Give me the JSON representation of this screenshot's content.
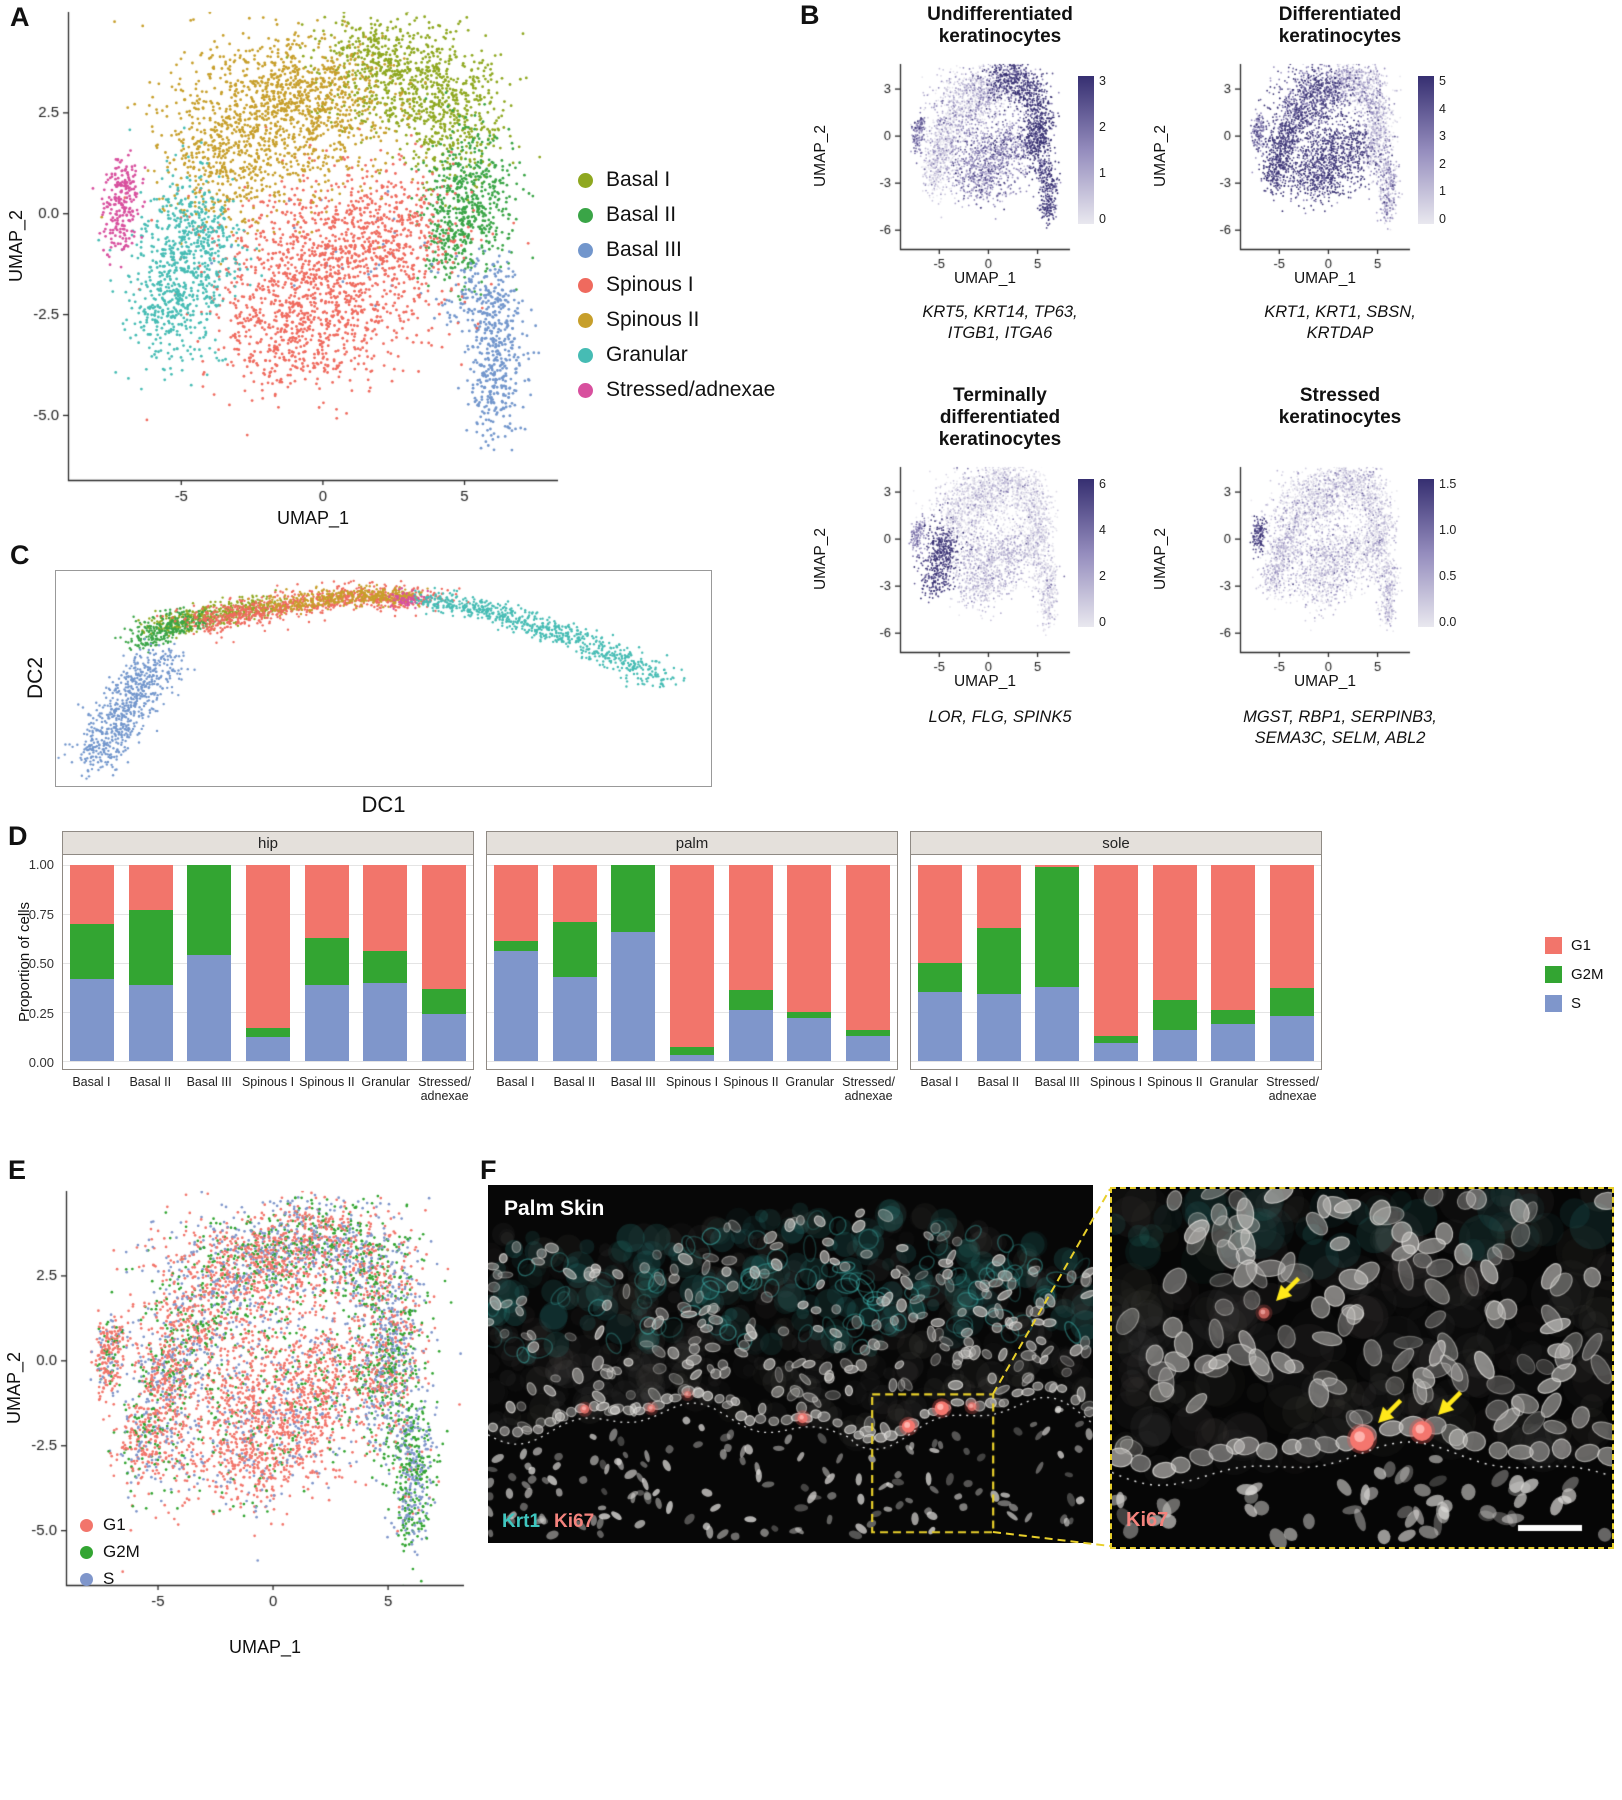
{
  "panels": {
    "A": {
      "label": "A",
      "xlabel": "UMAP_1",
      "ylabel": "UMAP_2"
    },
    "B": {
      "label": "B"
    },
    "C": {
      "label": "C",
      "xlabel": "DC1",
      "ylabel": "DC2"
    },
    "D": {
      "label": "D",
      "ylabel": "Proportion of cells"
    },
    "E": {
      "label": "E",
      "xlabel": "UMAP_1",
      "ylabel": "UMAP_2"
    },
    "F": {
      "label": "F",
      "tissue_label": "Palm Skin",
      "stain_krt1": "Krt1",
      "stain_ki67": "Ki67",
      "inset_stain": "Ki67",
      "colors": {
        "krt1": "#3fc6bf",
        "ki67": "#f4837d",
        "roi": "#e8cf2a"
      }
    }
  },
  "chart_data": {
    "A": {
      "type": "scatter",
      "xlabel": "UMAP_1",
      "ylabel": "UMAP_2",
      "xlim": [
        -9,
        8.3
      ],
      "ylim": [
        -6.6,
        5.0
      ],
      "xticks": [
        {
          "v": -5,
          "l": "-5"
        },
        {
          "v": 0,
          "l": "0"
        },
        {
          "v": 5,
          "l": "5"
        }
      ],
      "yticks": [
        {
          "v": -5,
          "l": "-5.0"
        },
        {
          "v": -2.5,
          "l": "-2.5"
        },
        {
          "v": 0,
          "l": "0.0"
        },
        {
          "v": 2.5,
          "l": "2.5"
        }
      ],
      "clusters": [
        {
          "name": "Basal I",
          "color": "#8fa820",
          "blobs": [
            [
              3.0,
              3.3,
              1.5,
              0.7,
              550
            ],
            [
              4.6,
              2.1,
              0.9,
              0.8,
              300
            ],
            [
              1.7,
              4.0,
              1.0,
              0.45,
              180
            ]
          ]
        },
        {
          "name": "Basal II",
          "color": "#3aa547",
          "blobs": [
            [
              5.2,
              0.3,
              0.75,
              0.95,
              480
            ],
            [
              4.4,
              -0.6,
              0.55,
              0.5,
              120
            ]
          ]
        },
        {
          "name": "Basal III",
          "color": "#7296cc",
          "blobs": [
            [
              6.2,
              -3.1,
              0.5,
              0.75,
              240
            ],
            [
              6.0,
              -4.6,
              0.4,
              0.55,
              140
            ],
            [
              5.8,
              -1.9,
              0.5,
              0.5,
              90
            ],
            [
              4.9,
              -2.3,
              0.55,
              0.45,
              50
            ],
            [
              1.5,
              -1.2,
              2.5,
              1.0,
              35
            ]
          ]
        },
        {
          "name": "Spinous I",
          "color": "#ef6a5e",
          "blobs": [
            [
              0.1,
              -1.4,
              2.1,
              1.15,
              1100
            ],
            [
              -1.0,
              -3.0,
              1.4,
              0.75,
              350
            ],
            [
              2.6,
              -0.4,
              1.2,
              0.8,
              280
            ]
          ]
        },
        {
          "name": "Spinous II",
          "color": "#c79f2b",
          "blobs": [
            [
              -1.9,
              2.2,
              1.9,
              1.05,
              850
            ],
            [
              -0.3,
              3.1,
              1.4,
              0.7,
              420
            ],
            [
              -3.6,
              1.0,
              0.95,
              0.75,
              230
            ]
          ]
        },
        {
          "name": "Granular",
          "color": "#46bcb4",
          "blobs": [
            [
              -5.0,
              -1.4,
              0.85,
              1.15,
              460
            ],
            [
              -4.3,
              -0.3,
              0.65,
              0.6,
              180
            ],
            [
              -5.7,
              -2.5,
              0.6,
              0.55,
              140
            ]
          ]
        },
        {
          "name": "Stressed/adnexae",
          "color": "#d8509e",
          "blobs": [
            [
              -7.2,
              0.0,
              0.33,
              0.55,
              170
            ],
            [
              -6.9,
              0.8,
              0.28,
              0.3,
              55
            ]
          ]
        }
      ]
    },
    "B": {
      "type": "scatter-feature-grid",
      "xlim": [
        -9,
        8.3
      ],
      "ylim": [
        -7.2,
        4.6
      ],
      "xticks": [
        {
          "v": -5,
          "l": "-5"
        },
        {
          "v": 0,
          "l": "0"
        },
        {
          "v": 5,
          "l": "5"
        }
      ],
      "yticks": [
        {
          "v": 3,
          "l": "3"
        },
        {
          "v": 0,
          "l": "0"
        },
        {
          "v": -3,
          "l": "-3"
        },
        {
          "v": -6,
          "l": "-6"
        }
      ],
      "gradient": [
        "#e9e8ef",
        "#948cbd",
        "#362f71"
      ],
      "subplots": [
        {
          "title": "Undifferentiated\nkeratinocytes",
          "genes": "KRT5, KRT14, TP63,\nITGB1, ITGA6",
          "xlabel": "UMAP_1",
          "ylabel": "UMAP_2",
          "scale_max": 3,
          "bar_ticks": [
            "3",
            "2",
            "1",
            "0"
          ],
          "expression": [
            0.85,
            0.95,
            0.85,
            0.45,
            0.18,
            0.1,
            0.55
          ],
          "noise": 0.22
        },
        {
          "title": "Differentiated\nkeratinocytes",
          "genes": "KRT1, KRT1, SBSN,\nKRTDAP",
          "xlabel": "UMAP_1",
          "ylabel": "UMAP_2",
          "scale_max": 5,
          "bar_ticks": [
            "5",
            "4",
            "3",
            "2",
            "1",
            "0"
          ],
          "expression": [
            0.25,
            0.1,
            0.3,
            0.85,
            0.75,
            0.9,
            0.55
          ],
          "noise": 0.22
        },
        {
          "title": "Terminally\ndifferentiated\nkeratinocytes",
          "genes": "LOR, FLG, SPINK5",
          "xlabel": "UMAP_1",
          "ylabel": "UMAP_2",
          "scale_max": 6,
          "bar_ticks": [
            "6",
            "4",
            "2",
            "0"
          ],
          "expression": [
            0.05,
            0.04,
            0.06,
            0.15,
            0.06,
            0.85,
            0.45
          ],
          "noise": 0.15
        },
        {
          "title": "Stressed\nkeratinocytes",
          "genes": "MGST, RBP1, SERPINB3,\nSEMA3C, SELM, ABL2",
          "xlabel": "UMAP_1",
          "ylabel": "UMAP_2",
          "scale_max": 1.5,
          "bar_ticks": [
            "1.5",
            "1.0",
            "0.5",
            "0.0"
          ],
          "expression": [
            0.08,
            0.08,
            0.1,
            0.1,
            0.08,
            0.12,
            0.8
          ],
          "noise": 0.18
        }
      ]
    },
    "C": {
      "type": "scatter",
      "xlabel": "DC1",
      "ylabel": "DC2",
      "segments": [
        {
          "name": "Basal I",
          "color": "#8fa820",
          "path": [
            [
              0.16,
              0.27
            ],
            [
              0.24,
              0.2
            ],
            [
              0.33,
              0.16
            ]
          ],
          "jx": 0.02,
          "jy": 0.025,
          "n": 450
        },
        {
          "name": "Basal II",
          "color": "#3aa547",
          "path": [
            [
              0.13,
              0.33
            ],
            [
              0.17,
              0.26
            ],
            [
              0.22,
              0.22
            ]
          ],
          "jx": 0.018,
          "jy": 0.03,
          "n": 280
        },
        {
          "name": "Basal III",
          "color": "#7296cc",
          "path": [
            [
              0.17,
              0.4
            ],
            [
              0.12,
              0.55
            ],
            [
              0.09,
              0.72
            ],
            [
              0.055,
              0.9
            ]
          ],
          "jx": 0.022,
          "jy": 0.045,
          "n": 650
        },
        {
          "name": "Spinous I",
          "color": "#ef6a5e",
          "path": [
            [
              0.22,
              0.25
            ],
            [
              0.32,
              0.17
            ],
            [
              0.45,
              0.12
            ],
            [
              0.56,
              0.125
            ]
          ],
          "jx": 0.025,
          "jy": 0.03,
          "n": 800
        },
        {
          "name": "Spinous II",
          "color": "#c79f2b",
          "path": [
            [
              0.33,
              0.165
            ],
            [
              0.45,
              0.115
            ],
            [
              0.54,
              0.12
            ]
          ],
          "jx": 0.02,
          "jy": 0.02,
          "n": 420
        },
        {
          "name": "Stressed/adnexae",
          "color": "#d8509e",
          "path": [
            [
              0.52,
              0.13
            ],
            [
              0.56,
              0.14
            ]
          ],
          "jx": 0.012,
          "jy": 0.02,
          "n": 70
        },
        {
          "name": "Granular",
          "color": "#46bcb4",
          "path": [
            [
              0.56,
              0.13
            ],
            [
              0.68,
              0.2
            ],
            [
              0.8,
              0.32
            ],
            [
              0.93,
              0.52
            ]
          ],
          "jx": 0.018,
          "jy": 0.025,
          "n": 700
        }
      ]
    },
    "D": {
      "type": "stacked-bar",
      "ylabel": "Proportion of cells",
      "yticks": [
        "1.00",
        "0.75",
        "0.50",
        "0.25",
        "0.00"
      ],
      "series": [
        {
          "name": "G1",
          "color": "#f2756b"
        },
        {
          "name": "G2M",
          "color": "#33a532"
        },
        {
          "name": "S",
          "color": "#7f96cb"
        }
      ],
      "categories": [
        "Basal I",
        "Basal II",
        "Basal III",
        "Spinous I",
        "Spinous II",
        "Granular",
        "Stressed/\nadnexae"
      ],
      "facets": [
        {
          "label": "hip",
          "values": {
            "S": [
              0.42,
              0.39,
              0.54,
              0.12,
              0.39,
              0.4,
              0.24
            ],
            "G2M": [
              0.28,
              0.38,
              0.46,
              0.05,
              0.24,
              0.16,
              0.13
            ],
            "G1": [
              0.3,
              0.23,
              0.0,
              0.83,
              0.37,
              0.44,
              0.63
            ]
          }
        },
        {
          "label": "palm",
          "values": {
            "S": [
              0.56,
              0.43,
              0.66,
              0.03,
              0.26,
              0.22,
              0.13
            ],
            "G2M": [
              0.05,
              0.28,
              0.34,
              0.04,
              0.1,
              0.03,
              0.03
            ],
            "G1": [
              0.39,
              0.29,
              0.0,
              0.93,
              0.64,
              0.75,
              0.84
            ]
          }
        },
        {
          "label": "sole",
          "values": {
            "S": [
              0.35,
              0.34,
              0.38,
              0.09,
              0.16,
              0.19,
              0.23
            ],
            "G2M": [
              0.15,
              0.34,
              0.61,
              0.04,
              0.15,
              0.07,
              0.14
            ],
            "G1": [
              0.5,
              0.32,
              0.01,
              0.87,
              0.69,
              0.74,
              0.63
            ]
          }
        }
      ]
    },
    "E": {
      "type": "scatter",
      "xlabel": "UMAP_1",
      "ylabel": "UMAP_2",
      "xlim": [
        -9,
        8.3
      ],
      "ylim": [
        -6.6,
        5.0
      ],
      "xticks": [
        {
          "v": -5,
          "l": "-5"
        },
        {
          "v": 0,
          "l": "0"
        },
        {
          "v": 5,
          "l": "5"
        }
      ],
      "yticks": [
        {
          "v": -5,
          "l": "-5.0"
        },
        {
          "v": -2.5,
          "l": "-2.5"
        },
        {
          "v": 0,
          "l": "0.0"
        },
        {
          "v": 2.5,
          "l": "2.5"
        }
      ],
      "legend": [
        {
          "label": "G1",
          "color": "#f2756b"
        },
        {
          "label": "G2M",
          "color": "#33a532"
        },
        {
          "label": "S",
          "color": "#7f96cb"
        }
      ],
      "phase_weights": [
        [
          0.4,
          0.27,
          0.33
        ],
        [
          0.3,
          0.35,
          0.35
        ],
        [
          0.06,
          0.44,
          0.5
        ],
        [
          0.72,
          0.11,
          0.17
        ],
        [
          0.5,
          0.22,
          0.28
        ],
        [
          0.55,
          0.2,
          0.25
        ],
        [
          0.62,
          0.16,
          0.22
        ]
      ]
    }
  }
}
